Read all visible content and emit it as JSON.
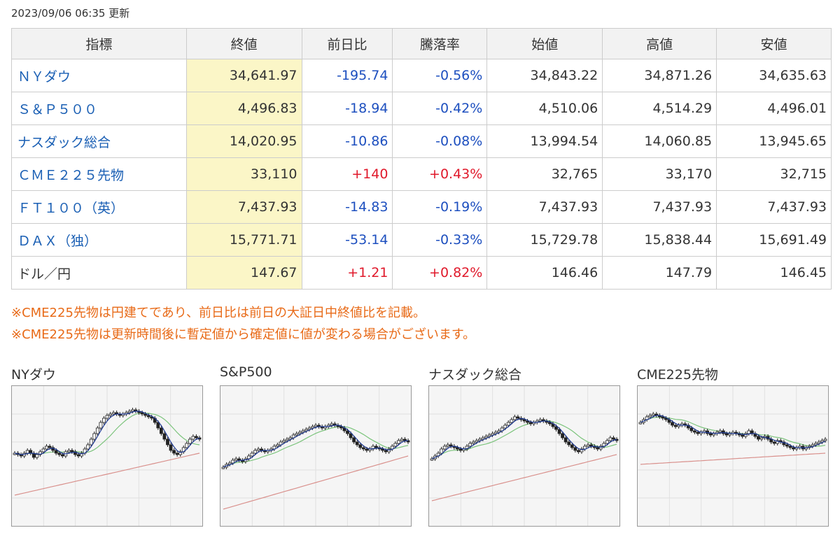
{
  "timestamp": "2023/09/06 06:35 更新",
  "table": {
    "headers": [
      "指標",
      "終値",
      "前日比",
      "騰落率",
      "始値",
      "高値",
      "安値"
    ],
    "rows": [
      {
        "name": "ＮＹダウ",
        "link": true,
        "close": "34,641.97",
        "change": "-195.74",
        "pct": "-0.56%",
        "dir": "neg",
        "open": "34,843.22",
        "high": "34,871.26",
        "low": "34,635.63"
      },
      {
        "name": "Ｓ＆Ｐ５００",
        "link": true,
        "close": "4,496.83",
        "change": "-18.94",
        "pct": "-0.42%",
        "dir": "neg",
        "open": "4,510.06",
        "high": "4,514.29",
        "low": "4,496.01"
      },
      {
        "name": "ナスダック総合",
        "link": true,
        "close": "14,020.95",
        "change": "-10.86",
        "pct": "-0.08%",
        "dir": "neg",
        "open": "13,994.54",
        "high": "14,060.85",
        "low": "13,945.65"
      },
      {
        "name": "ＣＭＥ２２５先物",
        "link": true,
        "close": "33,110",
        "change": "+140",
        "pct": "+0.43%",
        "dir": "pos",
        "open": "32,765",
        "high": "33,170",
        "low": "32,715"
      },
      {
        "name": "ＦＴ１００（英）",
        "link": true,
        "close": "7,437.93",
        "change": "-14.83",
        "pct": "-0.19%",
        "dir": "neg",
        "open": "7,437.93",
        "high": "7,437.93",
        "low": "7,437.93"
      },
      {
        "name": "ＤＡＸ（独）",
        "link": true,
        "close": "15,771.71",
        "change": "-53.14",
        "pct": "-0.33%",
        "dir": "neg",
        "open": "15,729.78",
        "high": "15,838.44",
        "low": "15,691.49"
      },
      {
        "name": "ドル／円",
        "link": false,
        "close": "147.67",
        "change": "+1.21",
        "pct": "+0.82%",
        "dir": "pos",
        "open": "146.46",
        "high": "147.79",
        "low": "146.45"
      }
    ]
  },
  "notes": [
    "※CME225先物は円建てであり、前日比は前日の大証日中終値比を記載。",
    "※CME225先物は更新時間後に暫定値から確定値に値が変わる場合がございます。"
  ],
  "colors": {
    "negative": "#1d4fbf",
    "positive": "#e0192b",
    "link": "#1a5fb4",
    "note": "#e86a17",
    "close_bg": "#fbf6c7",
    "ma_short": "#1f3a93",
    "ma_mid": "#7cc47c",
    "ma_long": "#d9908c"
  },
  "charts": [
    {
      "title": "NYダウ",
      "closes": [
        52,
        51,
        50,
        52,
        54,
        52,
        49,
        51,
        53,
        55,
        57,
        56,
        54,
        52,
        51,
        50,
        53,
        54,
        53,
        51,
        50,
        52,
        55,
        58,
        62,
        66,
        70,
        74,
        77,
        79,
        80,
        81,
        80,
        79,
        80,
        81,
        82,
        83,
        82,
        81,
        80,
        79,
        78,
        77,
        74,
        70,
        66,
        62,
        58,
        54,
        52,
        51,
        53,
        56,
        59,
        62,
        64,
        63,
        62
      ]
    },
    {
      "title": "S&P500",
      "closes": [
        42,
        44,
        45,
        47,
        48,
        47,
        46,
        48,
        50,
        52,
        54,
        55,
        54,
        53,
        54,
        55,
        57,
        58,
        60,
        61,
        62,
        63,
        65,
        66,
        67,
        68,
        69,
        70,
        71,
        72,
        71,
        70,
        71,
        72,
        73,
        72,
        71,
        70,
        68,
        66,
        63,
        60,
        58,
        56,
        55,
        54,
        55,
        57,
        56,
        55,
        54,
        53,
        55,
        57,
        59,
        61,
        62,
        61,
        60
      ]
    },
    {
      "title": "ナスダック総合",
      "closes": [
        48,
        50,
        52,
        55,
        57,
        58,
        57,
        56,
        55,
        54,
        55,
        57,
        59,
        60,
        61,
        62,
        63,
        64,
        65,
        66,
        67,
        68,
        70,
        72,
        74,
        76,
        78,
        77,
        76,
        75,
        74,
        73,
        74,
        75,
        76,
        75,
        74,
        73,
        71,
        69,
        66,
        63,
        60,
        58,
        56,
        54,
        53,
        55,
        57,
        58,
        57,
        56,
        55,
        57,
        59,
        61,
        63,
        62,
        61
      ]
    },
    {
      "title": "CME225先物",
      "closes": [
        74,
        76,
        78,
        79,
        80,
        79,
        78,
        77,
        76,
        74,
        72,
        71,
        72,
        73,
        72,
        70,
        68,
        67,
        66,
        67,
        68,
        66,
        65,
        66,
        67,
        68,
        66,
        65,
        66,
        67,
        66,
        65,
        64,
        66,
        68,
        66,
        64,
        62,
        63,
        64,
        62,
        60,
        59,
        61,
        60,
        58,
        57,
        56,
        55,
        56,
        57,
        55,
        56,
        57,
        58,
        59,
        60,
        61,
        62
      ]
    }
  ]
}
